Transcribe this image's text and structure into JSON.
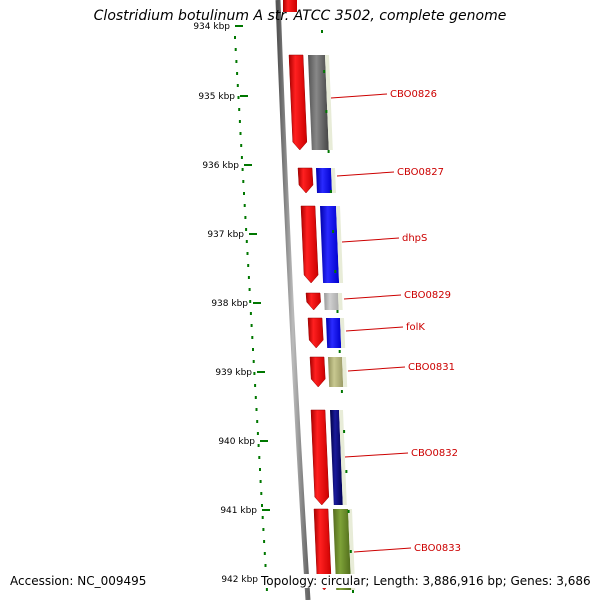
{
  "header": {
    "title": "Clostridium botulinum A str. ATCC 3502, complete genome"
  },
  "footer": {
    "accession": "Accession: NC_009495",
    "topology": "Topology: circular; Length: 3,886,916 bp; Genes: 3,686"
  },
  "map": {
    "ticks": [
      "934 kbp",
      "935 kbp",
      "936 kbp",
      "937 kbp",
      "938 kbp",
      "939 kbp",
      "940 kbp",
      "941 kbp",
      "942 kbp"
    ],
    "genes": [
      {
        "label": "CBO0826",
        "color": "#666666"
      },
      {
        "label": "CBO0827",
        "color": "#0000ff"
      },
      {
        "label": "dhpS",
        "color": "#0000ff"
      },
      {
        "label": "CBO0829",
        "color": "#b0b0b0"
      },
      {
        "label": "folK",
        "color": "#0000ff"
      },
      {
        "label": "CBO0831",
        "color": "#a8a870"
      },
      {
        "label": "CBO0832",
        "color": "#000066"
      },
      {
        "label": "CBO0833",
        "color": "#6b8e23"
      }
    ],
    "colors": {
      "strand_arrow": "#ff0000",
      "backbone": "#777777",
      "tick_mark": "#007700",
      "label": "#cc0000"
    }
  }
}
